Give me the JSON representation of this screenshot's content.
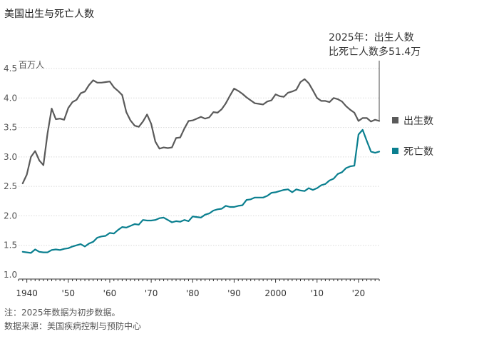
{
  "chart_data": {
    "type": "line",
    "title": "美国出生与死亡人数",
    "unit_label": "百万人",
    "ylim": [
      1.0,
      4.5
    ],
    "xlim": [
      1938,
      2025
    ],
    "y_ticks": [
      1.0,
      1.5,
      2.0,
      2.5,
      3.0,
      3.5,
      4.0,
      4.5
    ],
    "y_tick_labels": [
      "1.0",
      "1.5",
      "2.0",
      "2.5",
      "3.0",
      "3.5",
      "4.0",
      "4.5"
    ],
    "x_ticks": [
      1940,
      1950,
      1960,
      1970,
      1980,
      1990,
      2000,
      2010,
      2020
    ],
    "x_tick_labels": [
      "1940",
      "'50",
      "'60",
      "'70",
      "'80",
      "'90",
      "2000",
      "'10",
      "'20"
    ],
    "colors": {
      "births": "#5a5a5a",
      "deaths": "#0a7f8f",
      "grid": "#d9d9d9",
      "axis": "#333333"
    },
    "series": [
      {
        "name": "出生数",
        "key": "births",
        "x": [
          1939,
          1940,
          1941,
          1942,
          1943,
          1944,
          1945,
          1946,
          1947,
          1948,
          1949,
          1950,
          1951,
          1952,
          1953,
          1954,
          1955,
          1956,
          1957,
          1958,
          1959,
          1960,
          1961,
          1962,
          1963,
          1964,
          1965,
          1966,
          1967,
          1968,
          1969,
          1970,
          1971,
          1972,
          1973,
          1974,
          1975,
          1976,
          1977,
          1978,
          1979,
          1980,
          1981,
          1982,
          1983,
          1984,
          1985,
          1986,
          1987,
          1988,
          1989,
          1990,
          1991,
          1992,
          1993,
          1994,
          1995,
          1996,
          1997,
          1998,
          1999,
          2000,
          2001,
          2002,
          2003,
          2004,
          2005,
          2006,
          2007,
          2008,
          2009,
          2010,
          2011,
          2012,
          2013,
          2014,
          2015,
          2016,
          2017,
          2018,
          2019,
          2020,
          2021,
          2022,
          2023,
          2024,
          2025
        ],
        "values": [
          2.55,
          2.7,
          3.0,
          3.1,
          2.94,
          2.86,
          3.4,
          3.82,
          3.64,
          3.65,
          3.63,
          3.83,
          3.93,
          3.97,
          4.08,
          4.11,
          4.22,
          4.3,
          4.26,
          4.26,
          4.27,
          4.28,
          4.18,
          4.12,
          4.05,
          3.76,
          3.62,
          3.53,
          3.51,
          3.6,
          3.72,
          3.56,
          3.26,
          3.14,
          3.16,
          3.15,
          3.16,
          3.32,
          3.33,
          3.48,
          3.61,
          3.62,
          3.65,
          3.68,
          3.65,
          3.67,
          3.76,
          3.75,
          3.81,
          3.91,
          4.04,
          4.16,
          4.12,
          4.07,
          4.01,
          3.96,
          3.91,
          3.9,
          3.89,
          3.94,
          3.96,
          4.06,
          4.03,
          4.02,
          4.09,
          4.11,
          4.14,
          4.27,
          4.32,
          4.25,
          4.13,
          4.0,
          3.95,
          3.95,
          3.93,
          4.0,
          3.98,
          3.94,
          3.86,
          3.8,
          3.75,
          3.61,
          3.66,
          3.66,
          3.6,
          3.63,
          3.61
        ]
      },
      {
        "name": "死亡数",
        "key": "deaths",
        "x": [
          1939,
          1940,
          1941,
          1942,
          1943,
          1944,
          1945,
          1946,
          1947,
          1948,
          1949,
          1950,
          1951,
          1952,
          1953,
          1954,
          1955,
          1956,
          1957,
          1958,
          1959,
          1960,
          1961,
          1962,
          1963,
          1964,
          1965,
          1966,
          1967,
          1968,
          1969,
          1970,
          1971,
          1972,
          1973,
          1974,
          1975,
          1976,
          1977,
          1978,
          1979,
          1980,
          1981,
          1982,
          1983,
          1984,
          1985,
          1986,
          1987,
          1988,
          1989,
          1990,
          1991,
          1992,
          1993,
          1994,
          1995,
          1996,
          1997,
          1998,
          1999,
          2000,
          2001,
          2002,
          2003,
          2004,
          2005,
          2006,
          2007,
          2008,
          2009,
          2010,
          2011,
          2012,
          2013,
          2014,
          2015,
          2016,
          2017,
          2018,
          2019,
          2020,
          2021,
          2022,
          2023,
          2024,
          2025
        ],
        "values": [
          1.39,
          1.38,
          1.37,
          1.43,
          1.39,
          1.38,
          1.38,
          1.42,
          1.43,
          1.42,
          1.44,
          1.45,
          1.48,
          1.5,
          1.52,
          1.48,
          1.53,
          1.56,
          1.63,
          1.65,
          1.66,
          1.71,
          1.7,
          1.76,
          1.81,
          1.8,
          1.83,
          1.86,
          1.85,
          1.93,
          1.92,
          1.92,
          1.93,
          1.96,
          1.97,
          1.93,
          1.89,
          1.91,
          1.9,
          1.93,
          1.91,
          1.99,
          1.98,
          1.97,
          2.02,
          2.04,
          2.09,
          2.11,
          2.12,
          2.17,
          2.15,
          2.15,
          2.17,
          2.18,
          2.27,
          2.28,
          2.31,
          2.31,
          2.31,
          2.34,
          2.39,
          2.4,
          2.42,
          2.44,
          2.45,
          2.4,
          2.45,
          2.43,
          2.42,
          2.47,
          2.44,
          2.47,
          2.52,
          2.54,
          2.6,
          2.63,
          2.71,
          2.74,
          2.81,
          2.84,
          2.85,
          3.38,
          3.46,
          3.27,
          3.09,
          3.07,
          3.09
        ]
      }
    ],
    "legend": [
      {
        "key": "births",
        "label": "出生数"
      },
      {
        "key": "deaths",
        "label": "死亡数"
      }
    ],
    "annotation": {
      "x": 2025,
      "line1": "2025年：出生人数",
      "line2": "比死亡人数多51.4万"
    },
    "notes": [
      "注：2025年数据为初步数据。",
      "数据来源：美国疾病控制与预防中心"
    ]
  }
}
